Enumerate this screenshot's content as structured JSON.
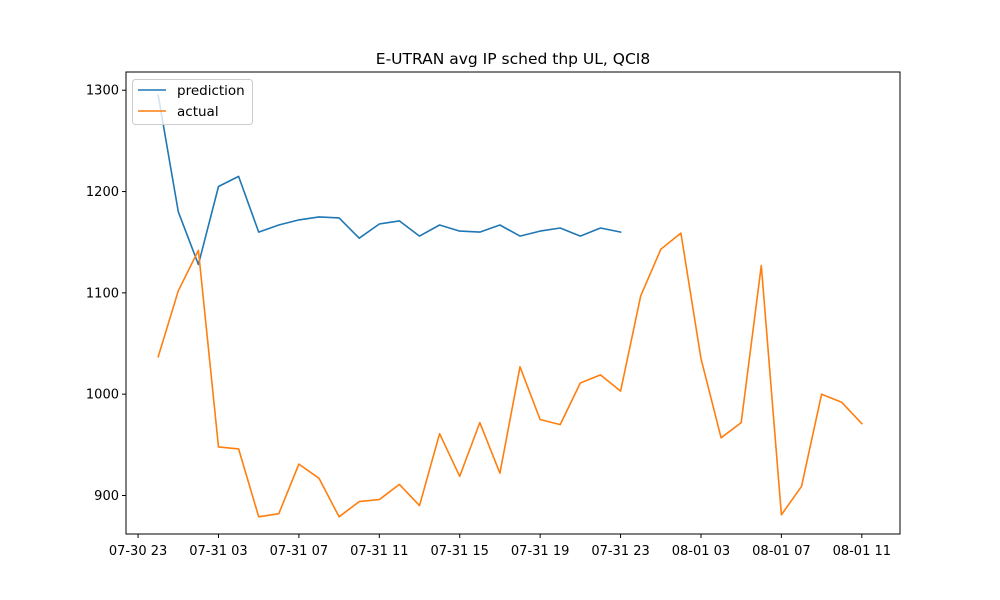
{
  "chart_data": {
    "type": "line",
    "title": "E-UTRAN avg IP sched thp UL, QCI8",
    "xlabel": "",
    "ylabel": "",
    "x_tick_labels": [
      "07-30 23",
      "07-31 03",
      "07-31 07",
      "07-31 11",
      "07-31 15",
      "07-31 19",
      "07-31 23",
      "08-01 03",
      "08-01 07",
      "08-01 11"
    ],
    "y_ticks": [
      900,
      1000,
      1100,
      1200,
      1300
    ],
    "xlim_hours_from_0730_2300": [
      -0.6,
      37.9
    ],
    "ylim": [
      862,
      1318
    ],
    "legend": {
      "placement": "upper-left"
    },
    "grid": false,
    "series": [
      {
        "name": "prediction",
        "color": "#1f77b4",
        "start": "07-31 00",
        "values": [
          1295,
          1180,
          1128,
          1205,
          1215,
          1160,
          1167,
          1172,
          1175,
          1174,
          1154,
          1168,
          1171,
          1156,
          1167,
          1161,
          1160,
          1167,
          1156,
          1161,
          1164,
          1156,
          1164,
          1160
        ]
      },
      {
        "name": "actual",
        "color": "#ff7f0e",
        "start": "07-31 00",
        "values": [
          1037,
          1102,
          1142,
          948,
          946,
          879,
          882,
          931,
          917,
          879,
          894,
          896,
          911,
          890,
          961,
          919,
          972,
          922,
          1027,
          975,
          970,
          1011,
          1019,
          1003,
          1097,
          1143,
          1159,
          1035,
          957,
          972,
          1127,
          881,
          909,
          1000,
          992,
          971
        ]
      }
    ]
  }
}
